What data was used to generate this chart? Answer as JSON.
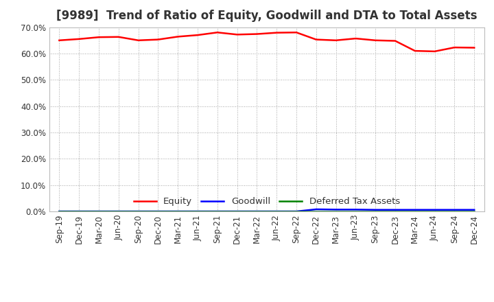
{
  "title": "[9989]  Trend of Ratio of Equity, Goodwill and DTA to Total Assets",
  "xlabels": [
    "Sep-19",
    "Dec-19",
    "Mar-20",
    "Jun-20",
    "Sep-20",
    "Dec-20",
    "Mar-21",
    "Jun-21",
    "Sep-21",
    "Dec-21",
    "Mar-22",
    "Jun-22",
    "Sep-22",
    "Dec-22",
    "Mar-23",
    "Jun-23",
    "Sep-23",
    "Dec-23",
    "Mar-24",
    "Jun-24",
    "Sep-24",
    "Dec-24"
  ],
  "equity": [
    0.65,
    0.655,
    0.662,
    0.663,
    0.65,
    0.653,
    0.664,
    0.67,
    0.68,
    0.672,
    0.674,
    0.679,
    0.68,
    0.653,
    0.65,
    0.657,
    0.65,
    0.648,
    0.61,
    0.608,
    0.623,
    0.622
  ],
  "goodwill": [
    0.0,
    0.0,
    0.0,
    0.0,
    0.0,
    0.0,
    0.0,
    0.0,
    0.0,
    0.0,
    0.0,
    0.0,
    0.0,
    0.008,
    0.007,
    0.007,
    0.006,
    0.006,
    0.006,
    0.006,
    0.006,
    0.006
  ],
  "dta": [
    0.0,
    0.0,
    0.0,
    0.0,
    0.0,
    0.0,
    0.0,
    0.0,
    0.0,
    0.0,
    0.0,
    0.0,
    0.0,
    0.0,
    0.0,
    0.0,
    0.0,
    0.0,
    0.0,
    0.0,
    0.0,
    0.0
  ],
  "equity_color": "#ff0000",
  "goodwill_color": "#0000ff",
  "dta_color": "#008000",
  "ylim": [
    0.0,
    0.7
  ],
  "yticks": [
    0.0,
    0.1,
    0.2,
    0.3,
    0.4,
    0.5,
    0.6,
    0.7
  ],
  "background_color": "#ffffff",
  "plot_bg_color": "#ffffff",
  "grid_color": "#999999",
  "title_fontsize": 12,
  "tick_fontsize": 8.5,
  "legend_labels": [
    "Equity",
    "Goodwill",
    "Deferred Tax Assets"
  ]
}
